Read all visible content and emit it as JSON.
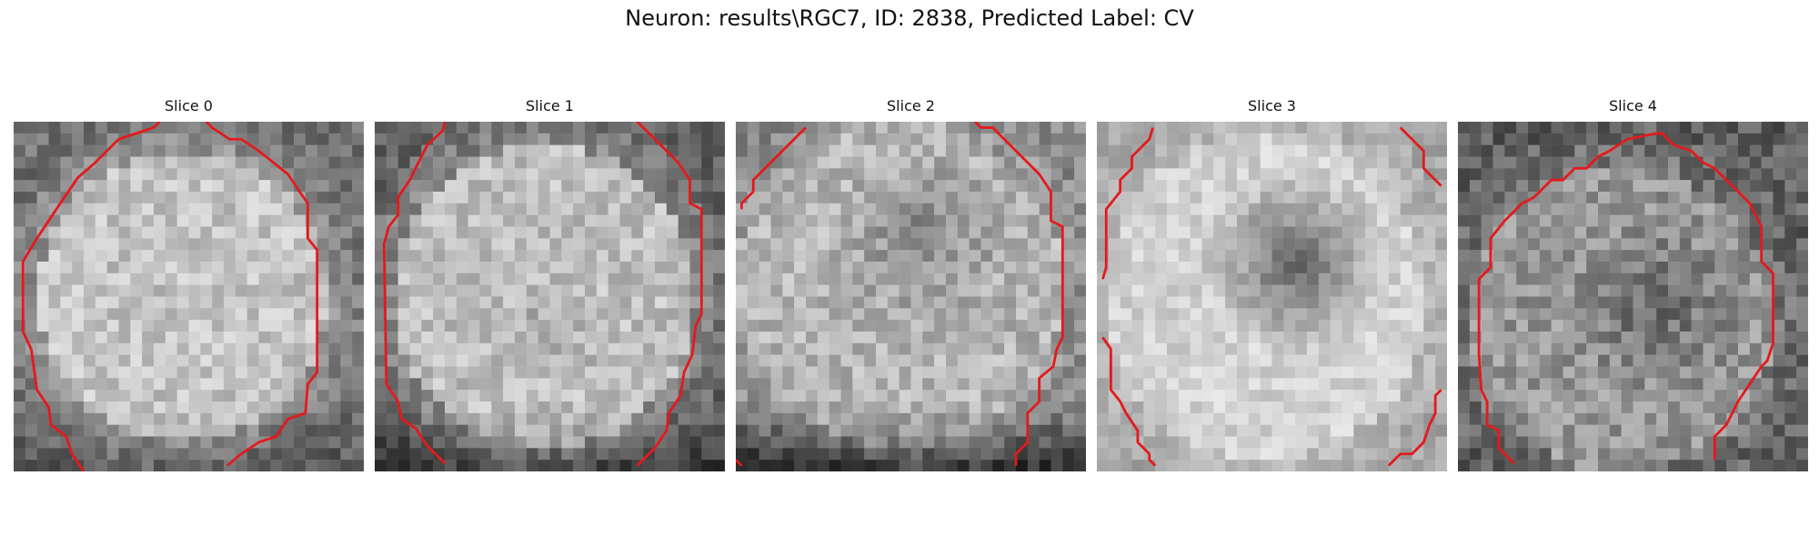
{
  "figure": {
    "title": "Neuron: results\\RGC7, ID: 2838, Predicted Label: CV"
  },
  "colors": {
    "contour": "#e41a1c",
    "background": "#ffffff",
    "text": "#111111"
  },
  "slices": [
    {
      "title": "Slice 0"
    },
    {
      "title": "Slice 1"
    },
    {
      "title": "Slice 2"
    },
    {
      "title": "Slice 3"
    },
    {
      "title": "Slice 4"
    }
  ]
}
